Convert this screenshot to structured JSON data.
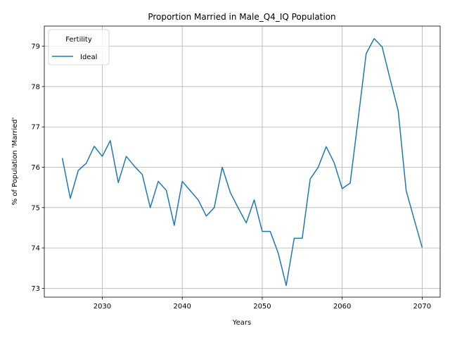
{
  "chart_data": {
    "type": "line",
    "title": "Proportion Married in Male_Q4_IQ Population",
    "xlabel": "Years",
    "ylabel": "% of Population 'Married'",
    "xlim": [
      2022.75,
      2072.25
    ],
    "ylim": [
      72.78,
      79.5
    ],
    "x_ticks": [
      2030,
      2040,
      2050,
      2060,
      2070
    ],
    "y_ticks": [
      73,
      74,
      75,
      76,
      77,
      78,
      79
    ],
    "grid": true,
    "legend": {
      "title": "Fertility",
      "placement": "top-left"
    },
    "series": [
      {
        "name": "Ideal",
        "color": "#1f77b4",
        "x": [
          2025,
          2026,
          2027,
          2028,
          2029,
          2030,
          2031,
          2032,
          2033,
          2034,
          2035,
          2036,
          2037,
          2038,
          2039,
          2040,
          2041,
          2042,
          2043,
          2044,
          2045,
          2046,
          2047,
          2048,
          2049,
          2050,
          2051,
          2052,
          2053,
          2054,
          2055,
          2056,
          2057,
          2058,
          2059,
          2060,
          2061,
          2062,
          2063,
          2064,
          2065,
          2066,
          2067,
          2068,
          2069,
          2070
        ],
        "values": [
          76.23,
          75.23,
          75.92,
          76.1,
          76.52,
          76.27,
          76.66,
          75.62,
          76.27,
          76.03,
          75.82,
          75.0,
          75.65,
          75.43,
          74.56,
          75.65,
          75.42,
          75.19,
          74.79,
          75.0,
          76.0,
          75.38,
          74.99,
          74.62,
          75.19,
          74.41,
          74.41,
          73.87,
          73.07,
          74.24,
          74.24,
          75.71,
          76.0,
          76.51,
          76.11,
          75.47,
          75.61,
          77.2,
          78.82,
          79.19,
          78.98,
          78.18,
          77.4,
          75.42,
          74.71,
          74.01
        ]
      }
    ]
  }
}
